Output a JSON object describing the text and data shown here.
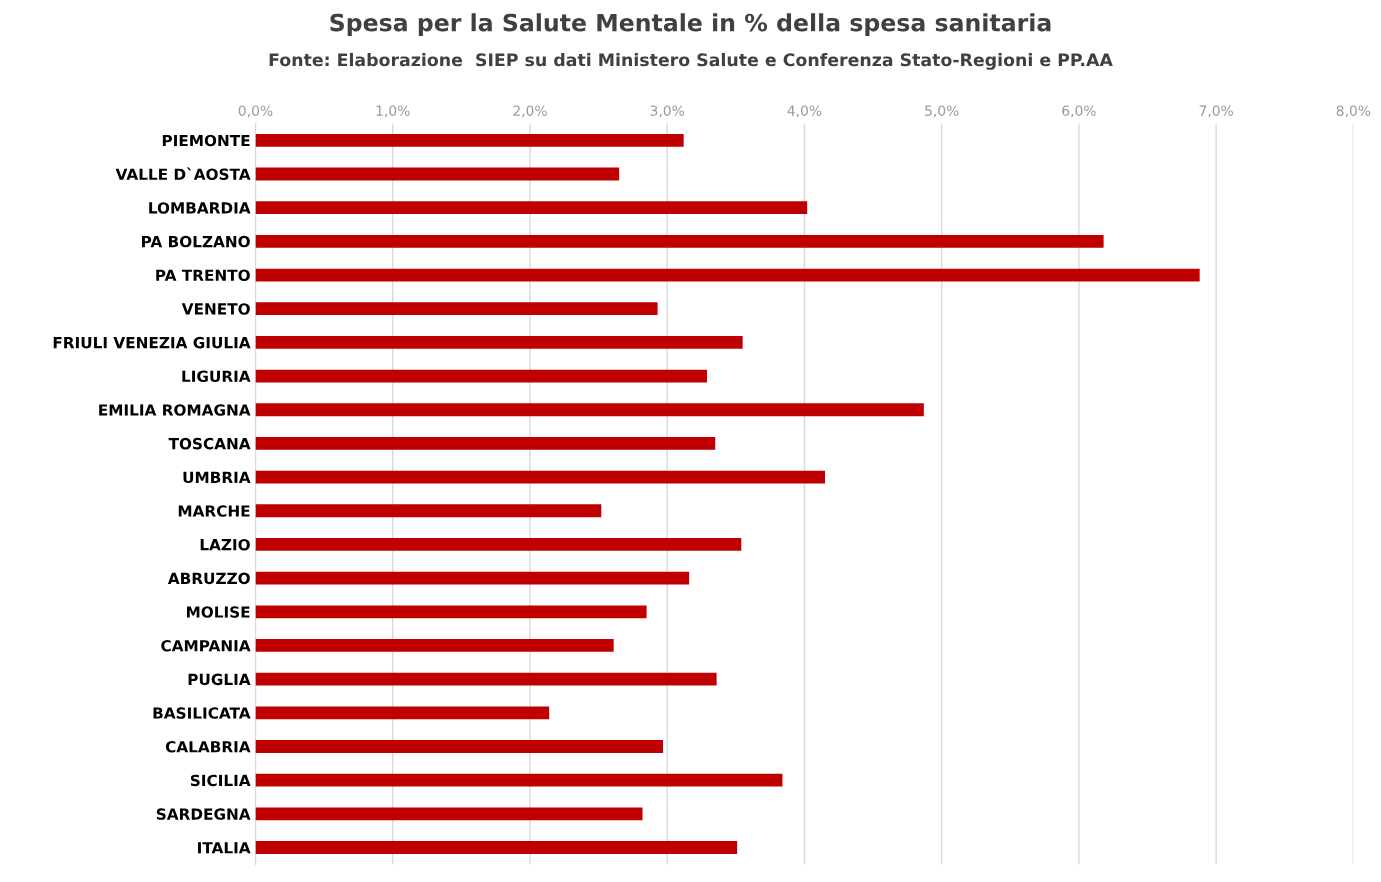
{
  "chart_data": {
    "type": "bar",
    "orientation": "horizontal",
    "title": "Spesa per la Salute Mentale in % della spesa sanitaria",
    "subtitle": "Fonte: Elaborazione  SIEP su dati Ministero Salute e Conferenza Stato-Regioni e PP.AA",
    "categories": [
      "PIEMONTE",
      "VALLE D`AOSTA",
      "LOMBARDIA",
      "PA BOLZANO",
      "PA TRENTO",
      "VENETO",
      "FRIULI VENEZIA GIULIA",
      "LIGURIA",
      "EMILIA ROMAGNA",
      "TOSCANA",
      "UMBRIA",
      "MARCHE",
      "LAZIO",
      "ABRUZZO",
      "MOLISE",
      "CAMPANIA",
      "PUGLIA",
      "BASILICATA",
      "CALABRIA",
      "SICILIA",
      "SARDEGNA",
      "ITALIA"
    ],
    "values": [
      3.12,
      2.65,
      4.02,
      6.18,
      6.88,
      2.93,
      3.55,
      3.29,
      4.87,
      3.35,
      4.15,
      2.52,
      3.54,
      3.16,
      2.85,
      2.61,
      3.36,
      2.14,
      2.97,
      3.84,
      2.82,
      3.51
    ],
    "color": "#c00000",
    "xlim": [
      0,
      8
    ],
    "xticks": [
      {
        "value": 0,
        "label": "0,0%"
      },
      {
        "value": 1,
        "label": "1,0%"
      },
      {
        "value": 2,
        "label": "2,0%"
      },
      {
        "value": 3,
        "label": "3,0%"
      },
      {
        "value": 4,
        "label": "4,0%"
      },
      {
        "value": 5,
        "label": "5,0%"
      },
      {
        "value": 6,
        "label": "6,0%"
      },
      {
        "value": 7,
        "label": "7,0%"
      },
      {
        "value": 8,
        "label": "8,0%"
      }
    ],
    "grid": "x",
    "legend": false
  }
}
